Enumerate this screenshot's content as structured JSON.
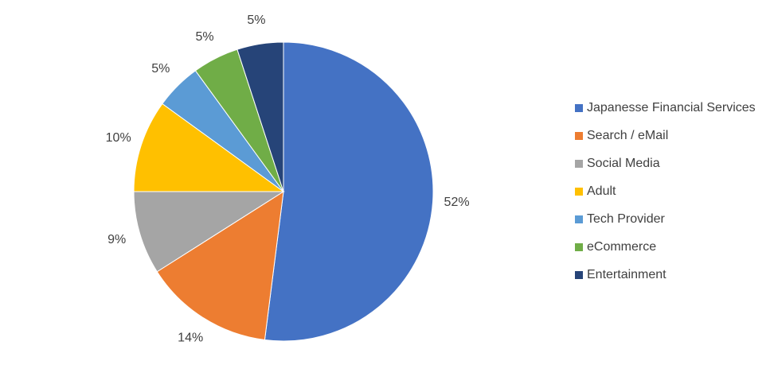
{
  "chart_data": {
    "type": "pie",
    "categories": [
      "Japanesse Financial Services",
      "Search / eMail",
      "Social Media",
      "Adult",
      "Tech Provider",
      "eCommerce",
      "Entertainment"
    ],
    "values": [
      52,
      14,
      9,
      10,
      5,
      5,
      5
    ],
    "value_labels": [
      "52%",
      "14%",
      "9%",
      "10%",
      "5%",
      "5%",
      "5%"
    ],
    "colors": [
      "#4472c4",
      "#ed7d31",
      "#a5a5a5",
      "#ffc000",
      "#5b9bd5",
      "#70ad47",
      "#264478"
    ],
    "legend": "right"
  }
}
